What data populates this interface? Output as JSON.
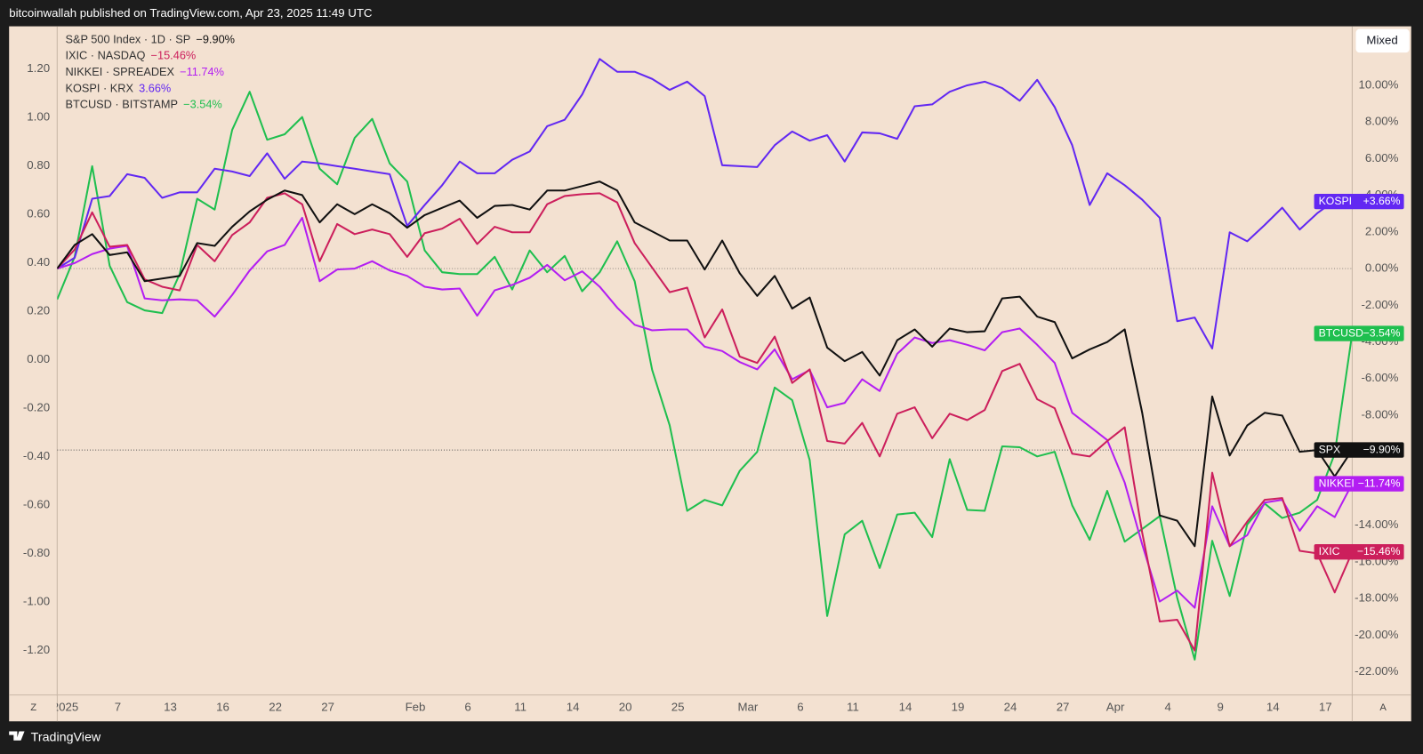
{
  "header": {
    "text": "bitcoinwallah published on TradingView.com, Apr 23, 2025 11:49 UTC"
  },
  "controls": {
    "mode": "Mixed",
    "left": "Z",
    "right": "A"
  },
  "footer": {
    "brand": "TradingView"
  },
  "chart_data": {
    "type": "line",
    "categories": [
      "2025",
      null,
      null,
      "7",
      null,
      null,
      "13",
      null,
      null,
      "16",
      null,
      null,
      "22",
      null,
      null,
      "27",
      null,
      null,
      null,
      null,
      "Feb",
      null,
      null,
      "6",
      null,
      null,
      "11",
      null,
      null,
      "14",
      null,
      null,
      "20",
      null,
      null,
      "25",
      null,
      null,
      null,
      "Mar",
      null,
      null,
      "6",
      null,
      null,
      "11",
      null,
      null,
      "14",
      null,
      null,
      "19",
      null,
      null,
      "24",
      null,
      null,
      "27",
      null,
      null,
      "Apr",
      null,
      null,
      "4",
      null,
      null,
      "9",
      null,
      null,
      "14",
      null,
      null,
      "17",
      null,
      null
    ],
    "ylim": [
      -1.384,
      1.376
    ],
    "yticks": [
      {
        "value": 1.2,
        "label": "1.20"
      },
      {
        "value": 1.0,
        "label": "1.00"
      },
      {
        "value": 0.8,
        "label": "0.80"
      },
      {
        "value": 0.6,
        "label": "0.60"
      },
      {
        "value": 0.4,
        "label": "0.40"
      },
      {
        "value": 0.2,
        "label": "0.20"
      },
      {
        "value": 0,
        "label": "0.00"
      },
      {
        "value": -0.2,
        "label": "-0.20"
      },
      {
        "value": -0.4,
        "label": "-0.40"
      },
      {
        "value": -0.6,
        "label": "-0.60"
      },
      {
        "value": -0.8,
        "label": "-0.80"
      },
      {
        "value": -1.0,
        "label": "-1.00"
      },
      {
        "value": -1.2,
        "label": "-1.20"
      }
    ],
    "y2lim": [
      -23.27,
      13.22
    ],
    "y2ticks": [
      {
        "value": 10,
        "label": "10.00%"
      },
      {
        "value": 8,
        "label": "8.00%"
      },
      {
        "value": 6,
        "label": "6.00%"
      },
      {
        "value": 4,
        "label": "4.00%"
      },
      {
        "value": 2,
        "label": "2.00%"
      },
      {
        "value": 0,
        "label": "0.00%"
      },
      {
        "value": -2,
        "label": "-2.00%"
      },
      {
        "value": -4,
        "label": "-4.00%"
      },
      {
        "value": -6,
        "label": "-6.00%"
      },
      {
        "value": -8,
        "label": "-8.00%"
      },
      {
        "value": -14,
        "label": "-14.00%"
      },
      {
        "value": -16,
        "label": "-16.00%"
      },
      {
        "value": -18,
        "label": "-18.00%"
      },
      {
        "value": -20,
        "label": "-20.00%"
      },
      {
        "value": -22,
        "label": "-22.00%"
      }
    ],
    "baseline": 0,
    "grid": false,
    "series": [
      {
        "name": "S&P 500 Index · 1D · SP",
        "tag": "SPX",
        "legend_value": "−9.90%",
        "tag_value": "−9.90%",
        "color": "#111111",
        "axis": "y2",
        "values": [
          0,
          1.29,
          1.88,
          0.74,
          0.89,
          -0.69,
          -0.54,
          -0.4,
          1.39,
          1.24,
          2.28,
          3.12,
          3.76,
          4.26,
          4.01,
          2.52,
          3.51,
          2.97,
          3.51,
          3.02,
          2.23,
          2.92,
          3.32,
          3.71,
          2.77,
          3.42,
          3.47,
          3.22,
          4.26,
          4.26,
          4.5,
          4.75,
          4.26,
          2.52,
          2.03,
          1.53,
          1.53,
          -0.05,
          1.53,
          -0.25,
          -1.49,
          -0.4,
          -2.18,
          -1.58,
          -4.31,
          -5.05,
          -4.55,
          -5.84,
          -3.91,
          -3.32,
          -4.26,
          -3.27,
          -3.47,
          -3.42,
          -1.63,
          -1.53,
          -2.62,
          -2.92,
          -4.9,
          -4.41,
          -4.01,
          -3.32,
          -7.87,
          -13.47,
          -13.76,
          -15.15,
          -6.98,
          -10.2,
          -8.56,
          -7.87,
          -8.02,
          -10.0,
          -9.9,
          -11.34,
          -9.9
        ]
      },
      {
        "name": "IXIC · NASDAQ",
        "tag": "IXIC",
        "legend_value": "−15.46%",
        "tag_value": "−15.46%",
        "color": "#cc1f5c",
        "axis": "y2",
        "values": [
          0,
          1.04,
          3.07,
          1.19,
          1.29,
          -0.59,
          -0.99,
          -1.19,
          1.29,
          0.4,
          1.83,
          2.52,
          3.86,
          4.11,
          3.51,
          0.4,
          2.43,
          1.88,
          2.13,
          1.88,
          0.64,
          1.93,
          2.18,
          2.72,
          1.34,
          2.28,
          1.98,
          1.98,
          3.51,
          3.96,
          4.06,
          4.11,
          3.61,
          1.39,
          0.05,
          -1.29,
          -1.04,
          -3.76,
          -2.23,
          -4.8,
          -5.15,
          -3.71,
          -6.24,
          -5.5,
          -9.41,
          -9.55,
          -8.42,
          -10.25,
          -7.92,
          -7.57,
          -9.26,
          -7.92,
          -8.27,
          -7.72,
          -5.59,
          -5.2,
          -7.13,
          -7.62,
          -10.1,
          -10.25,
          -9.41,
          -8.66,
          -14.41,
          -19.26,
          -19.16,
          -20.84,
          -11.14,
          -15.15,
          -13.81,
          -12.62,
          -12.52,
          -15.4,
          -15.54,
          -17.67,
          -15.46
        ]
      },
      {
        "name": "NIKKEI · SPREADEX",
        "tag": "NIKKEI",
        "legend_value": "−11.74%",
        "tag_value": "−11.74%",
        "color": "#b31ef2",
        "axis": "y2",
        "values": [
          0,
          0.3,
          0.79,
          1.09,
          1.24,
          -1.63,
          -1.73,
          -1.68,
          -1.73,
          -2.62,
          -1.44,
          -0.1,
          0.94,
          1.29,
          2.77,
          -0.69,
          -0.05,
          0,
          0.4,
          -0.1,
          -0.4,
          -0.99,
          -1.14,
          -1.09,
          -2.57,
          -1.19,
          -0.89,
          -0.5,
          0.2,
          -0.64,
          -0.15,
          -0.99,
          -2.13,
          -3.07,
          -3.37,
          -3.32,
          -3.32,
          -4.26,
          -4.5,
          -5.1,
          -5.5,
          -4.41,
          -6.04,
          -5.54,
          -7.57,
          -7.33,
          -6.04,
          -6.68,
          -4.65,
          -3.76,
          -4.06,
          -3.91,
          -4.16,
          -4.46,
          -3.47,
          -3.27,
          -4.16,
          -5.15,
          -7.87,
          -8.61,
          -9.36,
          -11.68,
          -15.05,
          -18.17,
          -17.57,
          -18.51,
          -12.97,
          -15.15,
          -14.55,
          -12.77,
          -12.62,
          -14.31,
          -12.97,
          -13.56,
          -11.74
        ]
      },
      {
        "name": "KOSPI · KRX",
        "tag": "KOSPI",
        "legend_value": "3.66%",
        "tag_value": "+3.66%",
        "color": "#6228f2",
        "axis": "y2",
        "values": [
          0,
          0.59,
          3.81,
          3.96,
          5.15,
          4.95,
          3.86,
          4.16,
          4.16,
          5.45,
          5.3,
          5.05,
          6.29,
          4.9,
          5.84,
          5.74,
          5.59,
          5.45,
          5.3,
          5.15,
          2.33,
          3.47,
          4.55,
          5.84,
          5.2,
          5.2,
          5.94,
          6.39,
          7.77,
          8.12,
          9.5,
          11.44,
          10.74,
          10.74,
          10.35,
          9.75,
          10.2,
          9.41,
          5.64,
          5.59,
          5.54,
          6.73,
          7.48,
          6.98,
          7.28,
          5.84,
          7.43,
          7.38,
          7.08,
          8.86,
          8.96,
          9.65,
          10.0,
          10.2,
          9.85,
          9.16,
          10.3,
          8.81,
          6.73,
          3.47,
          5.2,
          4.55,
          3.76,
          2.77,
          -2.87,
          -2.67,
          -4.36,
          1.98,
          1.49,
          2.38,
          3.32,
          2.13,
          3.02,
          3.71,
          3.66
        ]
      },
      {
        "name": "BTCUSD · BITSTAMP",
        "tag": "BTCUSD",
        "legend_value": "−3.54%",
        "tag_value": "−3.54%",
        "color": "#1fbf4f",
        "axis": "y2",
        "values": [
          -1.68,
          0.64,
          5.59,
          0.15,
          -1.83,
          -2.28,
          -2.43,
          -0.3,
          3.81,
          3.22,
          7.57,
          9.65,
          7.03,
          7.33,
          8.27,
          5.45,
          4.6,
          7.13,
          8.17,
          5.74,
          4.75,
          0.99,
          -0.2,
          -0.3,
          -0.3,
          0.64,
          -1.14,
          0.99,
          -0.2,
          0.69,
          -1.24,
          -0.2,
          1.49,
          -0.69,
          -5.54,
          -8.56,
          -13.22,
          -12.62,
          -12.92,
          -11.04,
          -10.0,
          -6.49,
          -7.18,
          -10.45,
          -18.96,
          -14.5,
          -13.76,
          -16.34,
          -13.42,
          -13.32,
          -14.65,
          -10.4,
          -13.17,
          -13.22,
          -9.7,
          -9.75,
          -10.25,
          -10.0,
          -12.92,
          -14.8,
          -12.13,
          -14.9,
          -14.21,
          -13.51,
          -17.97,
          -21.34,
          -14.85,
          -17.87,
          -13.96,
          -12.82,
          -13.61,
          -13.32,
          -12.62,
          -10.1,
          -3.54
        ]
      }
    ]
  }
}
